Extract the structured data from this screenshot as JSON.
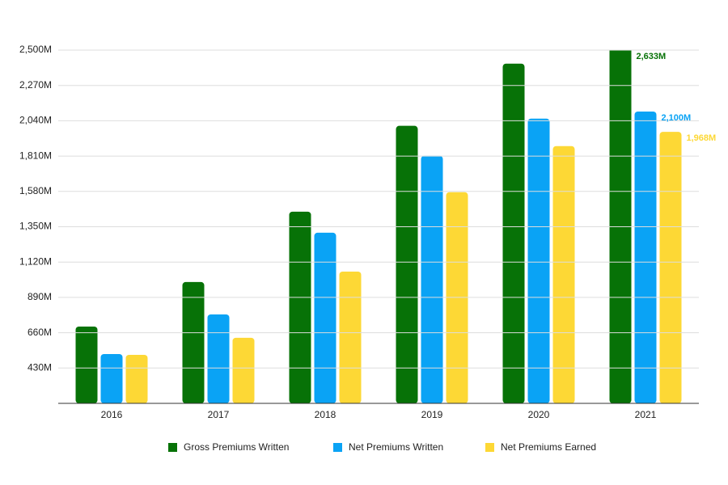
{
  "chart_data": {
    "type": "bar",
    "categories": [
      "2016",
      "2017",
      "2018",
      "2019",
      "2020",
      "2021"
    ],
    "series": [
      {
        "name": "Gross Premiums Written",
        "color": "#077207",
        "values": [
          700,
          990,
          1448,
          2007,
          2412,
          2633
        ],
        "value_labels": [
          null,
          null,
          null,
          null,
          null,
          "2,633M"
        ]
      },
      {
        "name": "Net Premiums Written",
        "color": "#0aa3f5",
        "values": [
          521,
          779,
          1311,
          1812,
          2054,
          2100
        ],
        "value_labels": [
          null,
          null,
          null,
          null,
          null,
          "2,100M"
        ]
      },
      {
        "name": "Net Premiums Earned",
        "color": "#fdd835",
        "values": [
          516,
          627,
          1058,
          1575,
          1875,
          1968
        ],
        "value_labels": [
          null,
          null,
          null,
          null,
          null,
          "1,968M"
        ]
      }
    ],
    "ylim": [
      200,
      2500
    ],
    "yticks": [
      {
        "value": 430,
        "label": "430M"
      },
      {
        "value": 660,
        "label": "660M"
      },
      {
        "value": 890,
        "label": "890M"
      },
      {
        "value": 1120,
        "label": "1,120M"
      },
      {
        "value": 1350,
        "label": "1,350M"
      },
      {
        "value": 1580,
        "label": "1,580M"
      },
      {
        "value": 1810,
        "label": "1,810M"
      },
      {
        "value": 2040,
        "label": "2,040M"
      },
      {
        "value": 2270,
        "label": "2,270M"
      },
      {
        "value": 2500,
        "label": "2,500M"
      }
    ],
    "grid": true,
    "legend": "bottom"
  }
}
